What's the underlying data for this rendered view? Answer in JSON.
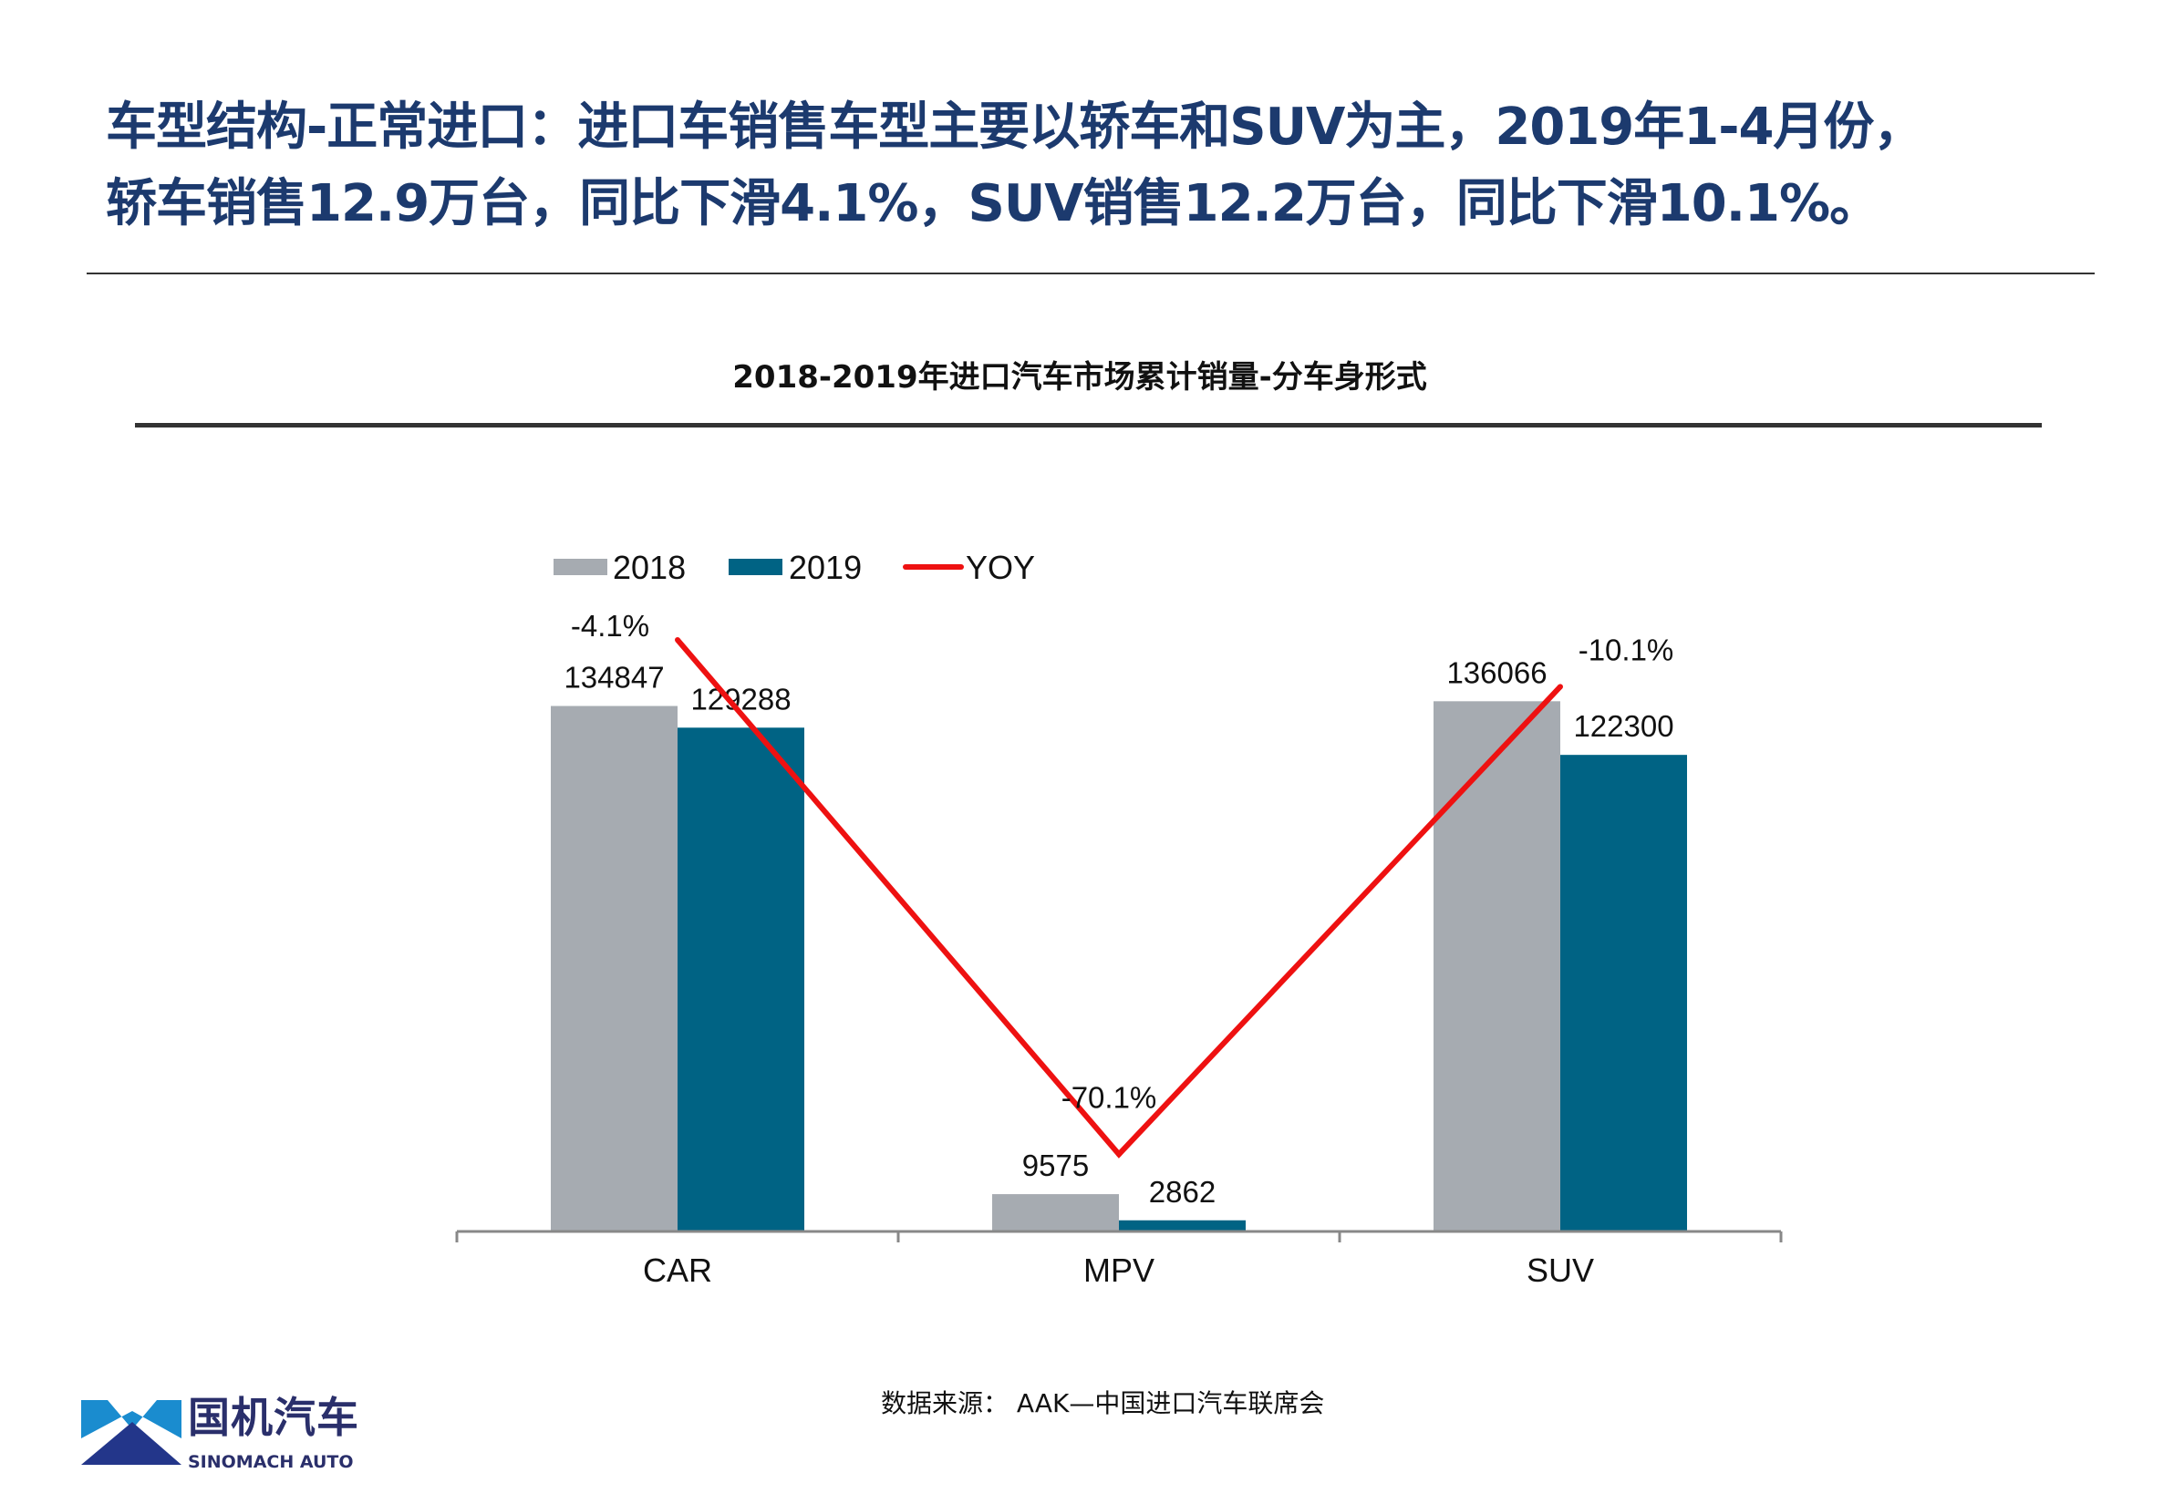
{
  "headline": {
    "line1": "车型结构-正常进口：进口车销售车型主要以轿车和SUV为主，2019年1-4月份，",
    "line2": "轿车销售12.9万台，同比下滑4.1%，SUV销售12.2万台，同比下滑10.1%。"
  },
  "chart_data": {
    "type": "bar+line",
    "title": "2018-2019年进口汽车市场累计销量-分车身形式",
    "categories": [
      "CAR",
      "MPV",
      "SUV"
    ],
    "series": [
      {
        "name": "2018",
        "type": "bar",
        "color": "#a6abb1",
        "values": [
          134847,
          9575,
          136066
        ],
        "labels": [
          "134847",
          "9575",
          "136066"
        ]
      },
      {
        "name": "2019",
        "type": "bar",
        "color": "#006384",
        "values": [
          129288,
          2862,
          122300
        ],
        "labels": [
          "129288",
          "2862",
          "122300"
        ]
      },
      {
        "name": "YOY",
        "type": "line",
        "axis": "secondary",
        "color": "#ee1111",
        "values": [
          -4.1,
          -70.1,
          -10.1
        ],
        "labels": [
          "-4.1%",
          "-70.1%",
          "-10.1%"
        ]
      }
    ],
    "ylim": [
      0,
      160000
    ],
    "y2lim": [
      -80,
      0
    ],
    "grid": false,
    "legend": "top-left"
  },
  "source": "数据来源：  AAK—中国进口汽车联席会",
  "logo": {
    "cn": "国机汽车",
    "en": "SINOMACH AUTO",
    "colors": [
      "#1a8ccf",
      "#23368a"
    ]
  }
}
